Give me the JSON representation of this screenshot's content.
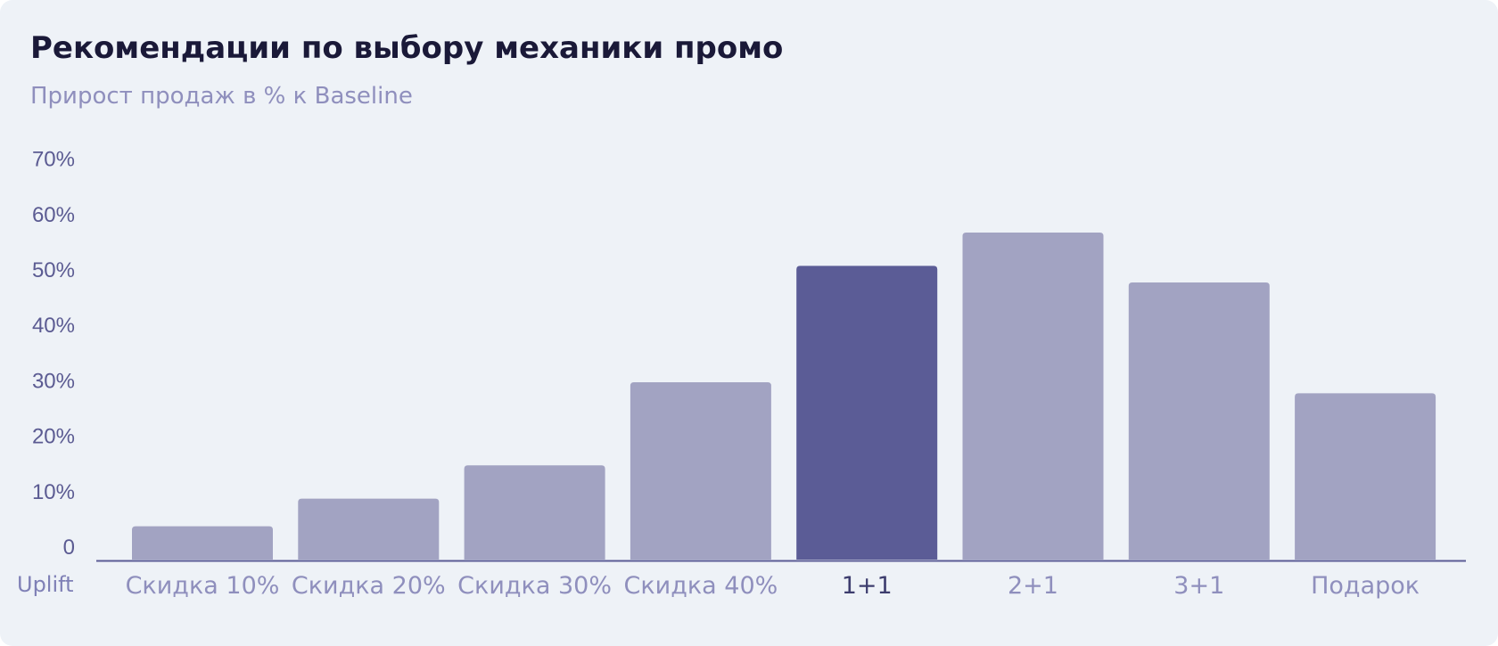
{
  "colors": {
    "bar": "#a2a3c2",
    "bar_highlight": "#5b5c96",
    "axis": "#5b5c96"
  },
  "chart_data": {
    "type": "bar",
    "title": "Рекомендации по выбору механики промо",
    "subtitle": "Прирост продаж в % к Baseline",
    "xlabel": "Uplift",
    "ylabel": "",
    "categories": [
      "Скидка 10%",
      "Скидка 20%",
      "Скидка 30%",
      "Скидка 40%",
      "1+1",
      "2+1",
      "3+1",
      "Подарок"
    ],
    "values": [
      6,
      11,
      17,
      32,
      53,
      59,
      50,
      30
    ],
    "highlighted_category": "1+1",
    "ylim": [
      0,
      70
    ],
    "yticks": [
      0,
      10,
      20,
      30,
      40,
      50,
      60,
      70
    ],
    "ytick_labels": [
      "0",
      "10%",
      "20%",
      "30%",
      "40%",
      "50%",
      "60%",
      "70%"
    ],
    "grid": false,
    "legend": "none"
  }
}
